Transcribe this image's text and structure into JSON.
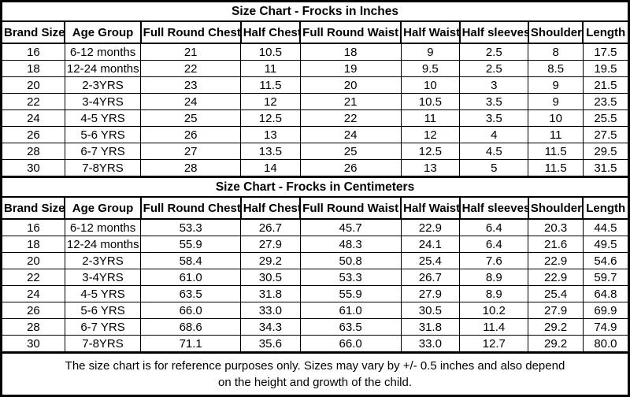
{
  "colors": {
    "border": "#000000",
    "text": "#000000",
    "background": "#ffffff"
  },
  "chart_data": [
    {
      "type": "table",
      "title": "Size Chart - Frocks in Inches",
      "columns": [
        "Brand Size",
        "Age Group",
        "Full Round Chest",
        "Half Chest",
        "Full Round Waist",
        "Half Waist",
        "Half sleeves",
        "Shoulder",
        "Length"
      ],
      "rows": [
        [
          "16",
          "6-12 months",
          "21",
          "10.5",
          "18",
          "9",
          "2.5",
          "8",
          "17.5"
        ],
        [
          "18",
          "12-24 months",
          "22",
          "11",
          "19",
          "9.5",
          "2.5",
          "8.5",
          "19.5"
        ],
        [
          "20",
          "2-3YRS",
          "23",
          "11.5",
          "20",
          "10",
          "3",
          "9",
          "21.5"
        ],
        [
          "22",
          "3-4YRS",
          "24",
          "12",
          "21",
          "10.5",
          "3.5",
          "9",
          "23.5"
        ],
        [
          "24",
          "4-5 YRS",
          "25",
          "12.5",
          "22",
          "11",
          "3.5",
          "10",
          "25.5"
        ],
        [
          "26",
          "5-6 YRS",
          "26",
          "13",
          "24",
          "12",
          "4",
          "11",
          "27.5"
        ],
        [
          "28",
          "6-7 YRS",
          "27",
          "13.5",
          "25",
          "12.5",
          "4.5",
          "11.5",
          "29.5"
        ],
        [
          "30",
          "7-8YRS",
          "28",
          "14",
          "26",
          "13",
          "5",
          "11.5",
          "31.5"
        ]
      ]
    },
    {
      "type": "table",
      "title": "Size Chart - Frocks in Centimeters",
      "columns": [
        "Brand Size",
        "Age Group",
        "Full Round Chest",
        "Half Chest",
        "Full Round Waist",
        "Half Waist",
        "Half sleeves",
        "Shoulder",
        "Length"
      ],
      "rows": [
        [
          "16",
          "6-12 months",
          "53.3",
          "26.7",
          "45.7",
          "22.9",
          "6.4",
          "20.3",
          "44.5"
        ],
        [
          "18",
          "12-24 months",
          "55.9",
          "27.9",
          "48.3",
          "24.1",
          "6.4",
          "21.6",
          "49.5"
        ],
        [
          "20",
          "2-3YRS",
          "58.4",
          "29.2",
          "50.8",
          "25.4",
          "7.6",
          "22.9",
          "54.6"
        ],
        [
          "22",
          "3-4YRS",
          "61.0",
          "30.5",
          "53.3",
          "26.7",
          "8.9",
          "22.9",
          "59.7"
        ],
        [
          "24",
          "4-5 YRS",
          "63.5",
          "31.8",
          "55.9",
          "27.9",
          "8.9",
          "25.4",
          "64.8"
        ],
        [
          "26",
          "5-6 YRS",
          "66.0",
          "33.0",
          "61.0",
          "30.5",
          "10.2",
          "27.9",
          "69.9"
        ],
        [
          "28",
          "6-7 YRS",
          "68.6",
          "34.3",
          "63.5",
          "31.8",
          "11.4",
          "29.2",
          "74.9"
        ],
        [
          "30",
          "7-8YRS",
          "71.1",
          "35.6",
          "66.0",
          "33.0",
          "12.7",
          "29.2",
          "80.0"
        ]
      ]
    }
  ],
  "footer": {
    "line1": "The size chart is for reference purposes only. Sizes may vary by +/- 0.5 inches and also depend",
    "line2": "on the height and growth of the child."
  }
}
